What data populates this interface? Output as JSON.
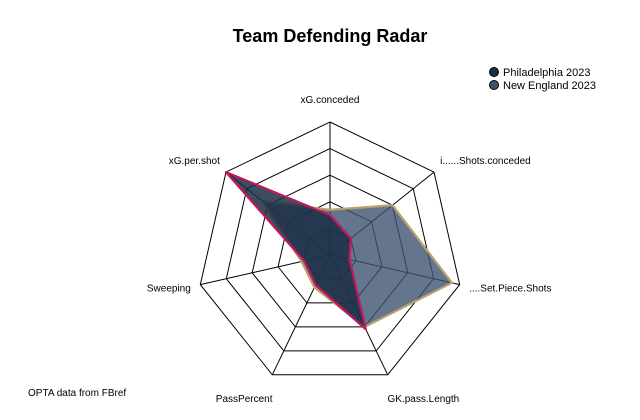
{
  "chart_data": {
    "type": "radar",
    "title": "Team Defending Radar",
    "caption": "OPTA data from FBref",
    "axes": [
      "xG.conceded",
      "i......Shots.conceded",
      "....Set.Piece.Shots",
      "GK.pass.Length",
      "PassPercent",
      "Sweeping",
      "xG.per.shot"
    ],
    "grid_levels": 5,
    "range": [
      0,
      1
    ],
    "legend_position": "top-right",
    "series": [
      {
        "name": "Philadelphia 2023",
        "values": [
          0.3,
          0.2,
          0.15,
          0.62,
          0.25,
          0.2,
          1.0
        ],
        "fill": "#1b2d45",
        "stroke": "#c2185b"
      },
      {
        "name": "New England 2023",
        "values": [
          0.34,
          0.6,
          0.94,
          0.6,
          0.27,
          0.22,
          0.65
        ],
        "fill": "#3e5372",
        "stroke": "#b8a26a"
      }
    ]
  }
}
